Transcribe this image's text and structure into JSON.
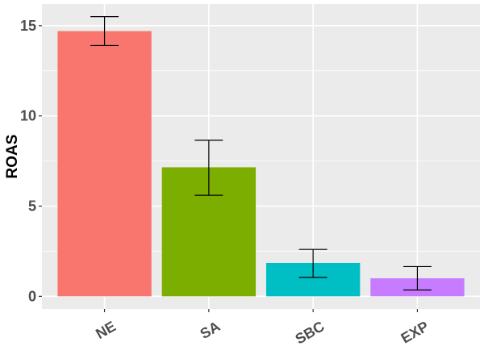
{
  "chart_data": {
    "type": "bar",
    "xlabel": "",
    "ylabel": "ROAS",
    "ylim": [
      -0.7,
      16.2
    ],
    "yticks": [
      0,
      5,
      10,
      15
    ],
    "grid": true,
    "legend": "none",
    "categories": [
      "NE",
      "SA",
      "SBC",
      "EXP"
    ],
    "values": [
      14.7,
      7.15,
      1.85,
      1.0
    ],
    "error_low": [
      13.9,
      5.6,
      1.05,
      0.35
    ],
    "error_high": [
      15.5,
      8.65,
      2.6,
      1.65
    ],
    "colors": [
      "#F8766D",
      "#7CAE00",
      "#00BFC4",
      "#C77CFF"
    ],
    "background": "#EBEBEB"
  }
}
